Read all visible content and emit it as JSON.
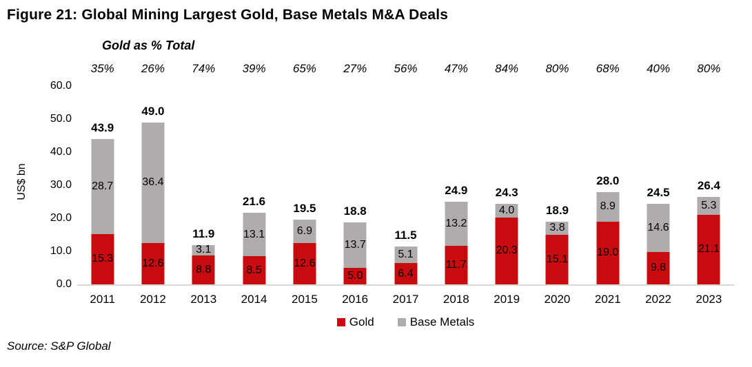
{
  "figure": {
    "title": "Figure 21: Global Mining Largest Gold, Base Metals M&A Deals",
    "subtitle": "Gold as % Total",
    "source": "Source: S&P Global"
  },
  "legend": {
    "gold_label": "Gold",
    "base_metals_label": "Base Metals"
  },
  "colors": {
    "gold": "#c80b0e",
    "base_metals": "#b0acac",
    "axis_line": "#d9d9d9",
    "text": "#000000"
  },
  "chart_data": {
    "type": "bar",
    "stacked": true,
    "title": "Figure 21: Global Mining Largest Gold, Base Metals M&A Deals",
    "annotation_header": "Gold as % Total",
    "categories": [
      "2011",
      "2012",
      "2013",
      "2014",
      "2015",
      "2016",
      "2017",
      "2018",
      "2019",
      "2020",
      "2021",
      "2022",
      "2023"
    ],
    "series": [
      {
        "name": "Gold",
        "color": "#c80b0e",
        "values": [
          15.3,
          12.6,
          8.8,
          8.5,
          12.6,
          5.0,
          6.4,
          11.7,
          20.3,
          15.1,
          19.0,
          9.8,
          21.1
        ]
      },
      {
        "name": "Base Metals",
        "color": "#b0acac",
        "values": [
          28.7,
          36.4,
          3.1,
          13.1,
          6.9,
          13.7,
          5.1,
          13.2,
          4.0,
          3.8,
          8.9,
          14.6,
          5.3
        ]
      }
    ],
    "totals": [
      43.9,
      49.0,
      11.9,
      21.6,
      19.5,
      18.8,
      11.5,
      24.9,
      24.3,
      18.9,
      28.0,
      24.5,
      26.4
    ],
    "gold_pct_total": [
      "35%",
      "26%",
      "74%",
      "39%",
      "65%",
      "27%",
      "56%",
      "47%",
      "84%",
      "80%",
      "68%",
      "40%",
      "80%"
    ],
    "xlabel": "",
    "ylabel": "US$ bn",
    "ylim": [
      0,
      60
    ],
    "yticks": [
      0,
      10,
      20,
      30,
      40,
      50,
      60
    ],
    "ytick_labels": [
      "0.0",
      "10.0",
      "20.0",
      "30.0",
      "40.0",
      "50.0",
      "60.0"
    ],
    "grid": false,
    "legend_position": "bottom"
  }
}
